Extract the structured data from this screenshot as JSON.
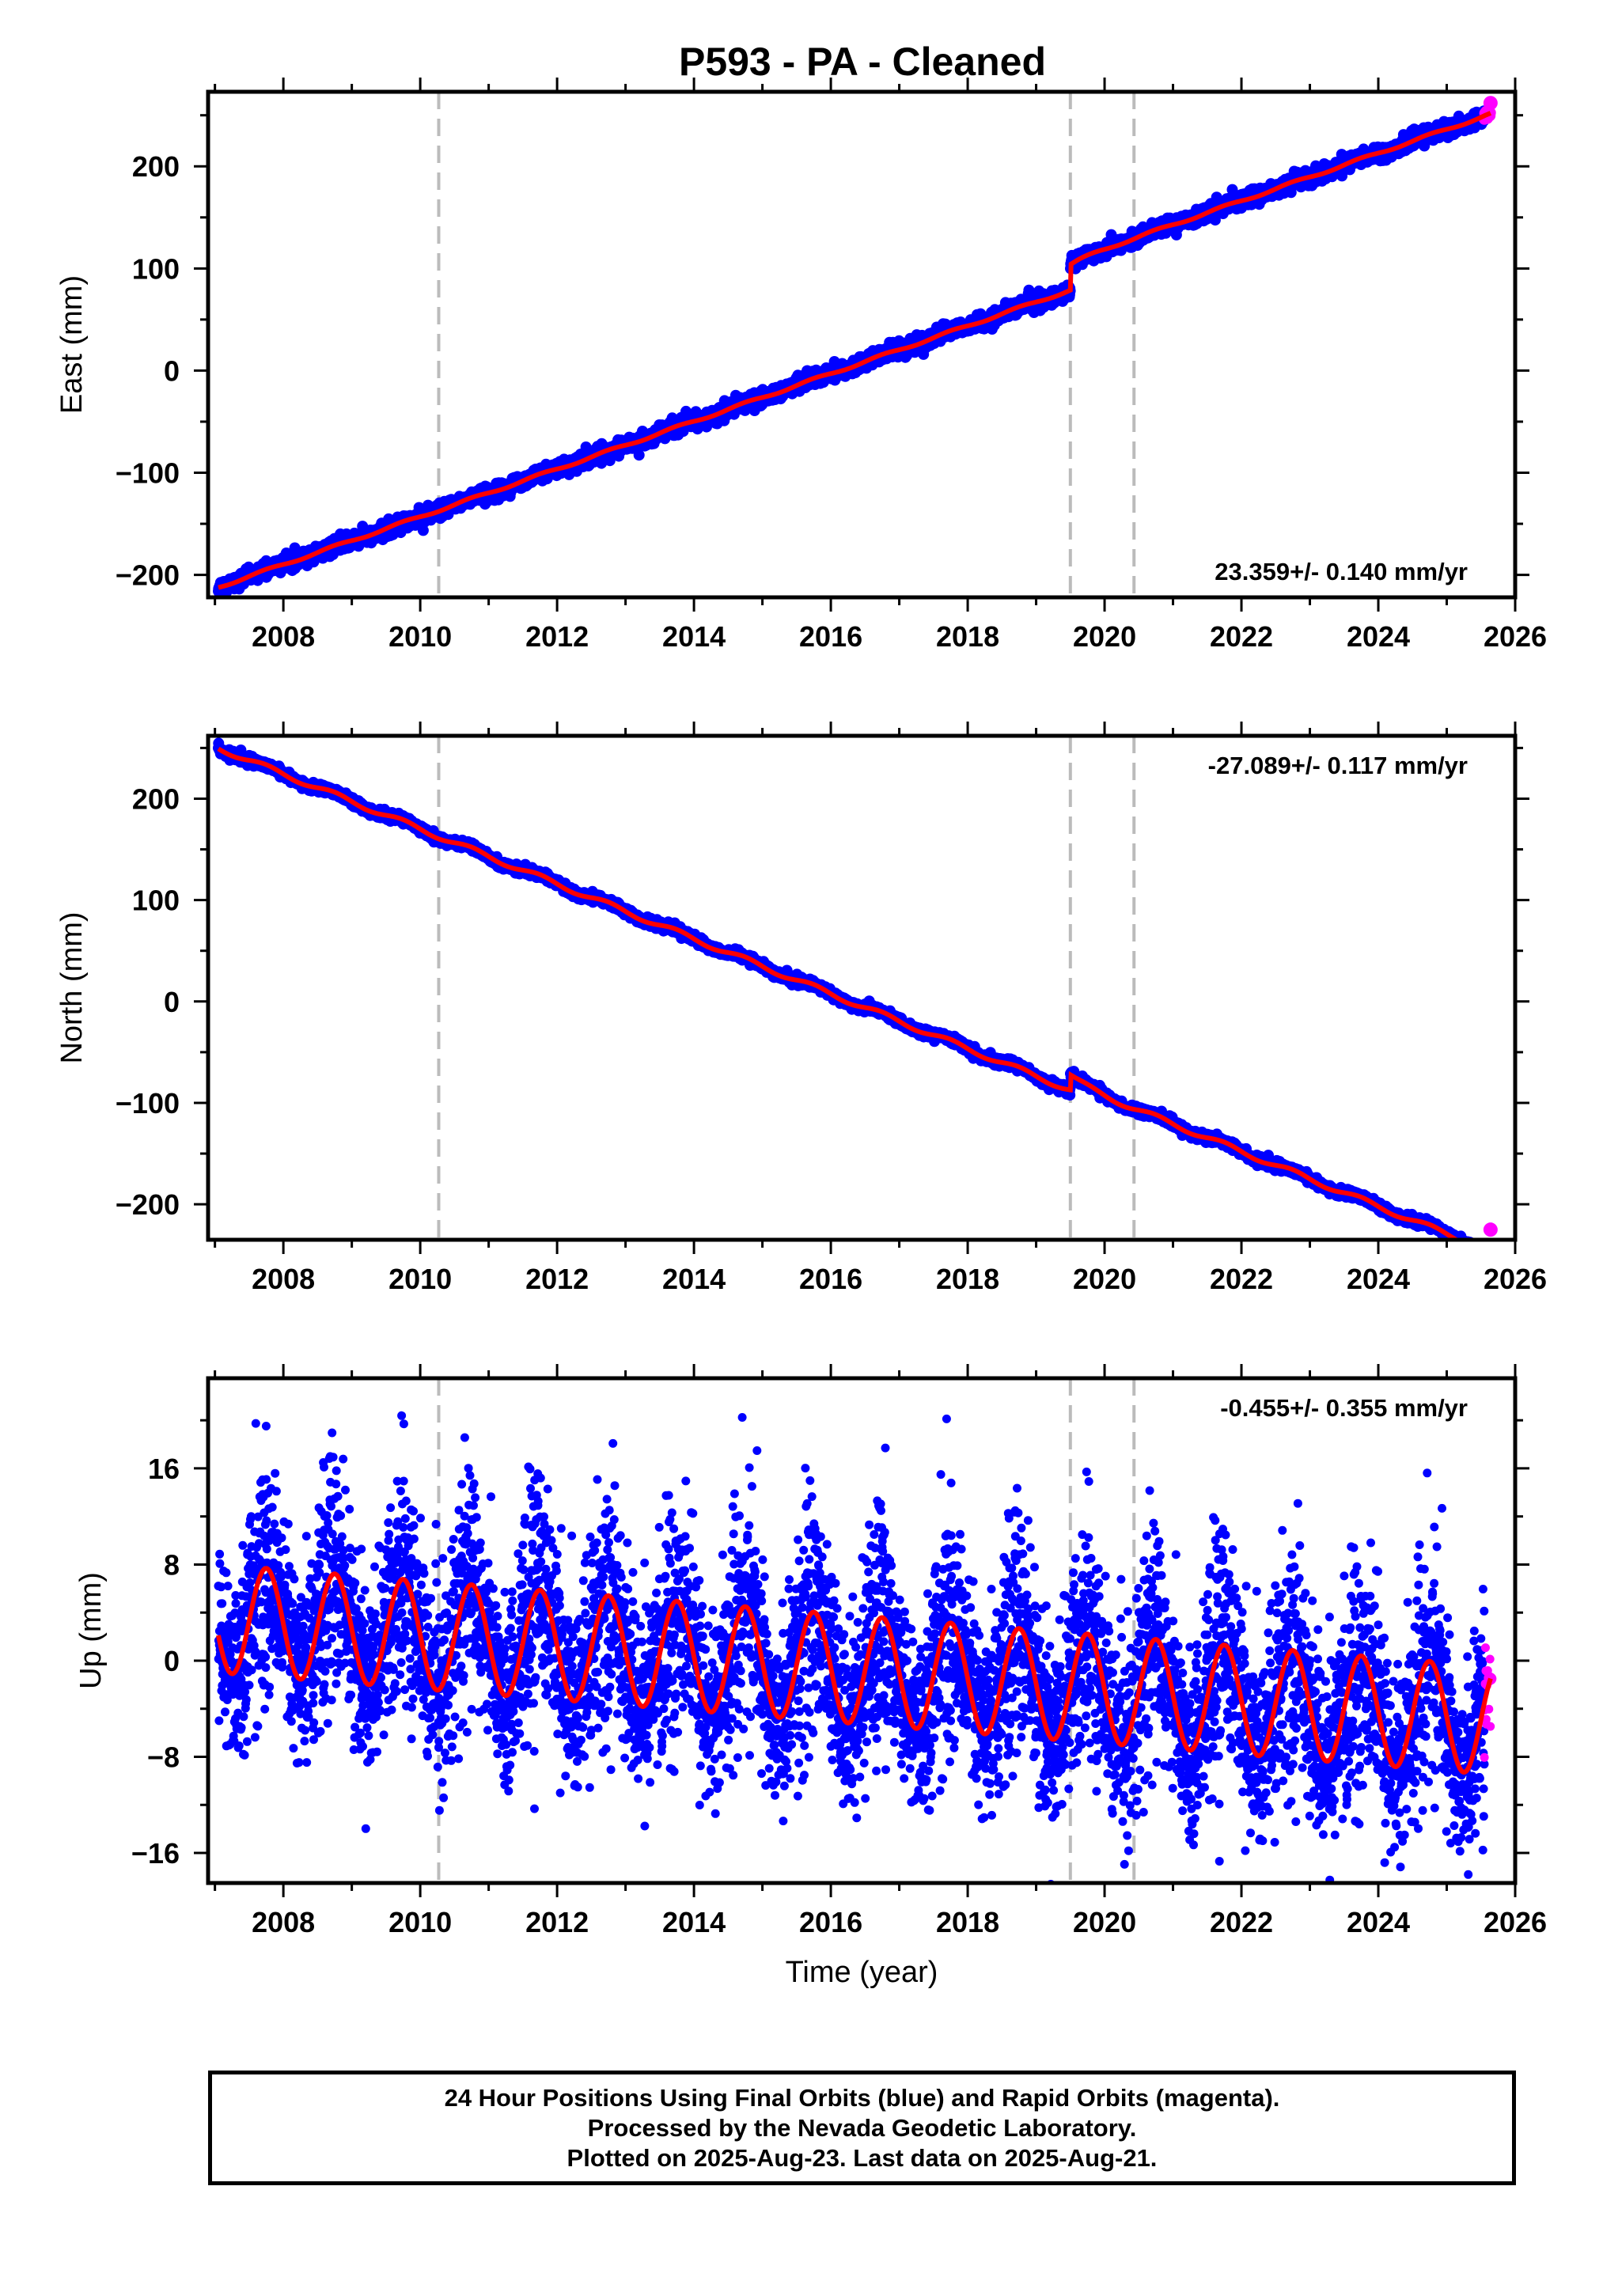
{
  "title": "P593  - PA - Cleaned",
  "footer": {
    "line1": "24 Hour Positions Using Final Orbits (blue) and Rapid Orbits (magenta).",
    "line2": "Processed by the Nevada Geodetic Laboratory.",
    "line3": "Plotted on 2025-Aug-23. Last data on 2025-Aug-21."
  },
  "colors": {
    "final_orbits": "#0000ff",
    "rapid_orbits": "#ff00ff",
    "model_fit": "#ff0000",
    "event_lines": "#bbbbbb"
  },
  "chart_data": [
    {
      "type": "scatter",
      "component": "east",
      "xlabel": "",
      "ylabel": "East (mm)",
      "xlim": [
        2006.9,
        2026.0
      ],
      "ylim": [
        -222,
        273
      ],
      "xticks": [
        2008,
        2010,
        2012,
        2014,
        2016,
        2018,
        2020,
        2022,
        2024,
        2026
      ],
      "yticks": [
        -200,
        -100,
        0,
        100,
        200
      ],
      "rate_label": "23.359+/- 0.140 mm/yr",
      "rate_label_position": "bottom-right",
      "event_lines": [
        2010.27,
        2019.5,
        2020.43
      ],
      "start_year": 2007.05,
      "end_year": 2025.64,
      "start_value": -212,
      "velocity": 23.359,
      "offsets": [
        {
          "year": 2019.5,
          "value": 25
        }
      ],
      "seasonal_amplitude": 1.2,
      "noise": 3.5,
      "rapid_start": 2025.55,
      "last_value": 262
    },
    {
      "type": "scatter",
      "component": "north",
      "xlabel": "",
      "ylabel": "North (mm)",
      "xlim": [
        2006.9,
        2026.0
      ],
      "ylim": [
        -235,
        262
      ],
      "xticks": [
        2008,
        2010,
        2012,
        2014,
        2016,
        2018,
        2020,
        2022,
        2024,
        2026
      ],
      "yticks": [
        -200,
        -100,
        0,
        100,
        200
      ],
      "rate_label": "-27.089+/- 0.117 mm/yr",
      "rate_label_position": "top-right",
      "event_lines": [
        2010.27,
        2019.5,
        2020.43
      ],
      "start_year": 2007.05,
      "end_year": 2025.64,
      "start_value": 250,
      "velocity": -27.089,
      "offsets": [
        {
          "year": 2019.5,
          "value": 15
        }
      ],
      "seasonal_amplitude": 2.5,
      "noise": 2.0,
      "rapid_start": 2025.55,
      "last_value": -225
    },
    {
      "type": "scatter",
      "component": "up",
      "xlabel": "Time (year)",
      "ylabel": "Up (mm)",
      "xlim": [
        2006.9,
        2026.0
      ],
      "ylim": [
        -18.5,
        23.5
      ],
      "xticks": [
        2008,
        2010,
        2012,
        2014,
        2016,
        2018,
        2020,
        2022,
        2024,
        2026
      ],
      "yticks": [
        -16,
        -8,
        0,
        8,
        16
      ],
      "rate_label": "-0.455+/- 0.355 mm/yr",
      "rate_label_position": "top-right",
      "event_lines": [
        2010.27,
        2019.5,
        2020.43
      ],
      "start_year": 2007.05,
      "end_year": 2025.64,
      "start_value": 3.5,
      "velocity": -0.455,
      "offsets": [
        {
          "year": 2019.5,
          "value": 0
        }
      ],
      "seasonal_amplitude": 4.5,
      "noise": 3.6,
      "rapid_start": 2025.55,
      "last_value": -1.5
    }
  ]
}
